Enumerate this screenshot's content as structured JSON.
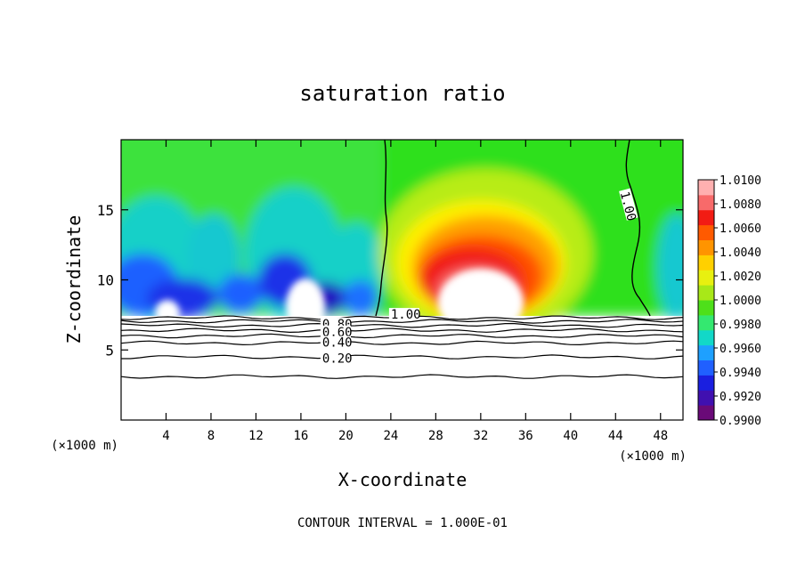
{
  "chart_data": {
    "type": "heatmap",
    "title": "saturation ratio",
    "xlabel": "X-coordinate",
    "ylabel": "Z-coordinate",
    "x_unit": "(×1000 m)",
    "x_ticks": [
      4,
      8,
      12,
      16,
      20,
      24,
      28,
      32,
      36,
      40,
      44,
      48
    ],
    "y_ticks": [
      5,
      10,
      15
    ],
    "xlim": [
      0,
      50
    ],
    "ylim": [
      0,
      20
    ],
    "footer": "CONTOUR INTERVAL = 1.000E-01",
    "colorbar": {
      "labels": [
        "1.0100",
        "1.0080",
        "1.0060",
        "1.0040",
        "1.0020",
        "1.0000",
        "0.9980",
        "0.9960",
        "0.9940",
        "0.9920",
        "0.9900"
      ],
      "colors": [
        "#6a0a78",
        "#4010b0",
        "#1a1fe0",
        "#2060ff",
        "#1ea0ff",
        "#12d8c8",
        "#34e870",
        "#4ee01a",
        "#a8e818",
        "#e8f010",
        "#ffd000",
        "#ff9400",
        "#ff5a00",
        "#f21c14",
        "#f86a6a",
        "#ffb0b0"
      ]
    },
    "contour_labels": [
      {
        "text": "1.00",
        "x": 44.8,
        "z": 16.3
      },
      {
        "text": "1.00",
        "x": 24.0,
        "z": 7.55
      },
      {
        "text": "0.80",
        "x": 17.9,
        "z": 6.85
      },
      {
        "text": "0.60",
        "x": 17.9,
        "z": 6.3
      },
      {
        "text": "0.40",
        "x": 17.9,
        "z": 5.55
      },
      {
        "text": "0.20",
        "x": 17.9,
        "z": 4.4
      }
    ],
    "contour_levels": [
      0.2,
      0.4,
      0.6,
      0.8,
      1.0
    ],
    "ground_contour_z": [
      3.1,
      4.5,
      5.5,
      6.0,
      6.4,
      6.75,
      7.05,
      7.3
    ]
  }
}
